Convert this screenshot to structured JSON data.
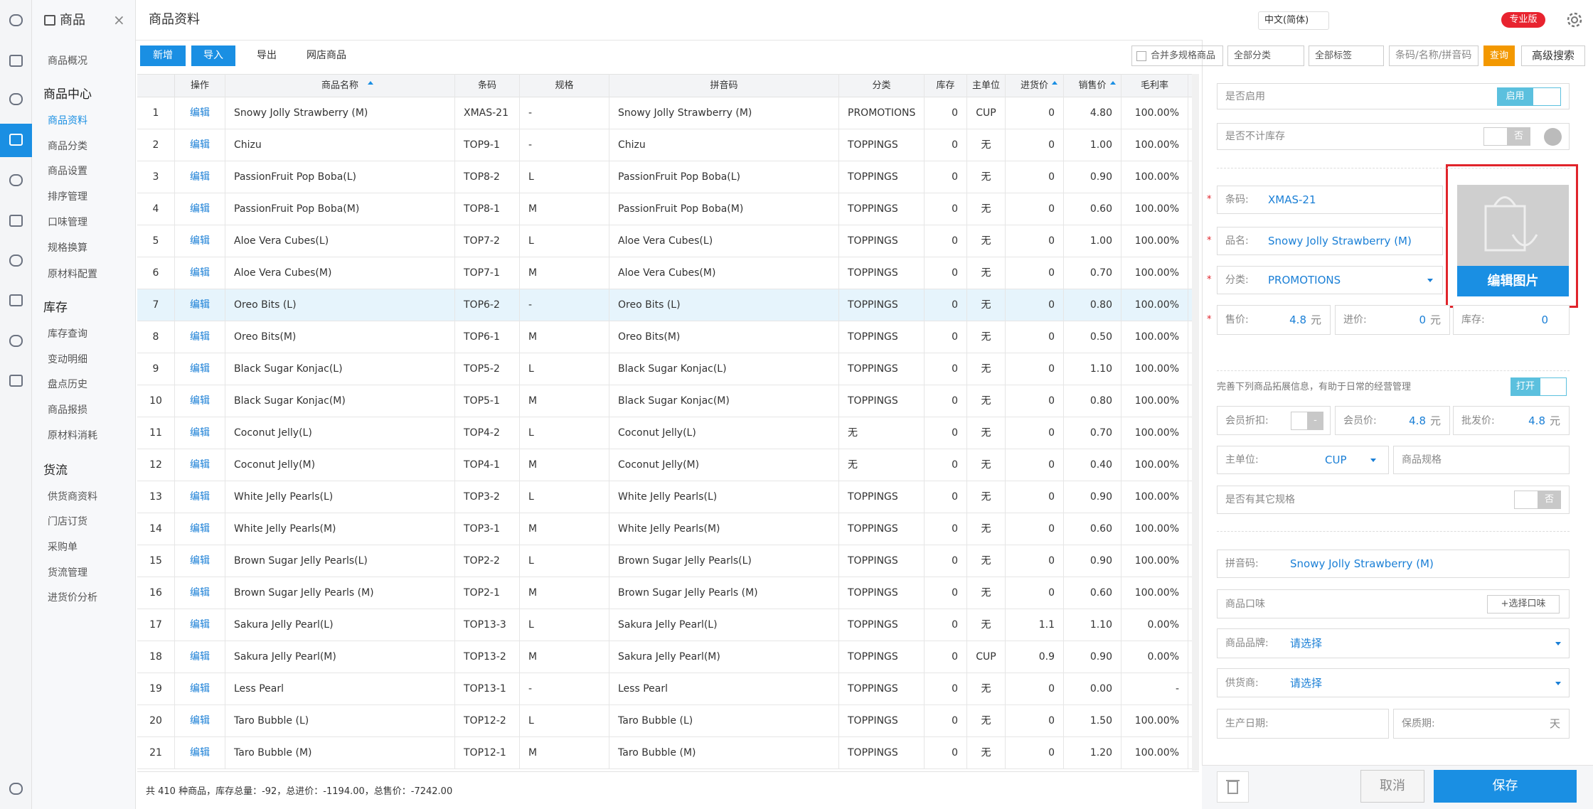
{
  "app": {
    "module": "商品",
    "sidebar": {
      "overview": "商品概况",
      "groups": [
        {
          "title": "商品中心",
          "items": [
            "商品资料",
            "商品分类",
            "商品设置",
            "排序管理",
            "口味管理",
            "规格换算",
            "原材料配置"
          ]
        },
        {
          "title": "库存",
          "items": [
            "库存查询",
            "变动明细",
            "盘点历史",
            "商品报损",
            "原材料消耗"
          ]
        },
        {
          "title": "货流",
          "items": [
            "供货商资料",
            "门店订货",
            "采购单",
            "货流管理",
            "进货价分析"
          ]
        }
      ]
    },
    "header": {
      "title": "商品资料",
      "language": "中文(简体)",
      "badge": "专业版"
    },
    "toolbar": {
      "buttons": [
        "新增",
        "导入",
        "导出",
        "网店商品"
      ],
      "merge": "合并多规格商品",
      "category_filter": "全部分类",
      "tag_filter": "全部标签",
      "search_placeholder": "条码/名称/拼音码",
      "query": "查询",
      "advanced": "高级搜索"
    },
    "table": {
      "columns": [
        "操作",
        "商品名称",
        "条码",
        "规格",
        "拼音码",
        "分类",
        "库存",
        "主单位",
        "进货价",
        "销售价",
        "毛利率"
      ],
      "rows": [
        [
          "1",
          "编辑",
          "Snowy Jolly Strawberry (M)",
          "XMAS-21",
          "-",
          "Snowy Jolly Strawberry (M)",
          "PROMOTIONS",
          "0",
          "CUP",
          "0",
          "4.80",
          "100.00%"
        ],
        [
          "2",
          "编辑",
          "Chizu",
          "TOP9-1",
          "-",
          "Chizu",
          "TOPPINGS",
          "0",
          "无",
          "0",
          "1.00",
          "100.00%"
        ],
        [
          "3",
          "编辑",
          "PassionFruit Pop Boba(L)",
          "TOP8-2",
          "L",
          "PassionFruit Pop Boba(L)",
          "TOPPINGS",
          "0",
          "无",
          "0",
          "0.90",
          "100.00%"
        ],
        [
          "4",
          "编辑",
          "PassionFruit Pop Boba(M)",
          "TOP8-1",
          "M",
          "PassionFruit Pop Boba(M)",
          "TOPPINGS",
          "0",
          "无",
          "0",
          "0.60",
          "100.00%"
        ],
        [
          "5",
          "编辑",
          "Aloe Vera Cubes(L)",
          "TOP7-2",
          "L",
          "Aloe Vera Cubes(L)",
          "TOPPINGS",
          "0",
          "无",
          "0",
          "1.00",
          "100.00%"
        ],
        [
          "6",
          "编辑",
          "Aloe Vera Cubes(M)",
          "TOP7-1",
          "M",
          "Aloe Vera Cubes(M)",
          "TOPPINGS",
          "0",
          "无",
          "0",
          "0.70",
          "100.00%"
        ],
        [
          "7",
          "编辑",
          "Oreo Bits (L)",
          "TOP6-2",
          "-",
          "Oreo Bits (L)",
          "TOPPINGS",
          "0",
          "无",
          "0",
          "0.80",
          "100.00%"
        ],
        [
          "8",
          "编辑",
          "Oreo Bits(M)",
          "TOP6-1",
          "M",
          "Oreo Bits(M)",
          "TOPPINGS",
          "0",
          "无",
          "0",
          "0.50",
          "100.00%"
        ],
        [
          "9",
          "编辑",
          "Black Sugar Konjac(L)",
          "TOP5-2",
          "L",
          "Black Sugar Konjac(L)",
          "TOPPINGS",
          "0",
          "无",
          "0",
          "1.10",
          "100.00%"
        ],
        [
          "10",
          "编辑",
          "Black Sugar Konjac(M)",
          "TOP5-1",
          "M",
          "Black Sugar Konjac(M)",
          "TOPPINGS",
          "0",
          "无",
          "0",
          "0.80",
          "100.00%"
        ],
        [
          "11",
          "编辑",
          "Coconut Jelly(L)",
          "TOP4-2",
          "L",
          "Coconut Jelly(L)",
          "无",
          "0",
          "无",
          "0",
          "0.70",
          "100.00%"
        ],
        [
          "12",
          "编辑",
          "Coconut Jelly(M)",
          "TOP4-1",
          "M",
          "Coconut Jelly(M)",
          "无",
          "0",
          "无",
          "0",
          "0.40",
          "100.00%"
        ],
        [
          "13",
          "编辑",
          "White Jelly Pearls(L)",
          "TOP3-2",
          "L",
          "White Jelly Pearls(L)",
          "TOPPINGS",
          "0",
          "无",
          "0",
          "0.90",
          "100.00%"
        ],
        [
          "14",
          "编辑",
          "White Jelly Pearls(M)",
          "TOP3-1",
          "M",
          "White Jelly Pearls(M)",
          "TOPPINGS",
          "0",
          "无",
          "0",
          "0.60",
          "100.00%"
        ],
        [
          "15",
          "编辑",
          "Brown Sugar Jelly Pearls(L)",
          "TOP2-2",
          "L",
          "Brown Sugar Jelly Pearls(L)",
          "TOPPINGS",
          "0",
          "无",
          "0",
          "0.90",
          "100.00%"
        ],
        [
          "16",
          "编辑",
          "Brown Sugar Jelly Pearls (M)",
          "TOP2-1",
          "M",
          "Brown Sugar Jelly Pearls (M)",
          "TOPPINGS",
          "0",
          "无",
          "0",
          "0.60",
          "100.00%"
        ],
        [
          "17",
          "编辑",
          "Sakura Jelly Pearl(L)",
          "TOP13-3",
          "L",
          "Sakura Jelly Pearl(L)",
          "TOPPINGS",
          "0",
          "无",
          "1.1",
          "1.10",
          "0.00%"
        ],
        [
          "18",
          "编辑",
          "Sakura Jelly Pearl(M)",
          "TOP13-2",
          "M",
          "Sakura Jelly Pearl(M)",
          "TOPPINGS",
          "0",
          "CUP",
          "0.9",
          "0.90",
          "0.00%"
        ],
        [
          "19",
          "编辑",
          "Less Pearl",
          "TOP13-1",
          "-",
          "Less Pearl",
          "TOPPINGS",
          "0",
          "无",
          "0",
          "0.00",
          "-"
        ],
        [
          "20",
          "编辑",
          "Taro Bubble (L)",
          "TOP12-2",
          "L",
          "Taro Bubble (L)",
          "TOPPINGS",
          "0",
          "无",
          "0",
          "1.50",
          "100.00%"
        ],
        [
          "21",
          "编辑",
          "Taro Bubble (M)",
          "TOP12-1",
          "M",
          "Taro Bubble (M)",
          "TOPPINGS",
          "0",
          "无",
          "0",
          "1.20",
          "100.00%"
        ]
      ],
      "footer": "共 410 种商品，库存总量：-92，总进价：-1194.00，总售价：-7242.00"
    },
    "form": {
      "required_mark": "*",
      "enabled": {
        "label": "是否启用",
        "toggle": "启用"
      },
      "ignore_stock": {
        "label": "是否不计库存",
        "toggle": "否"
      },
      "barcode": {
        "label": "条码:",
        "value": "XMAS-21"
      },
      "name": {
        "label": "品名:",
        "value": "Snowy Jolly Strawberry (M)"
      },
      "category": {
        "label": "分类:",
        "value": "PROMOTIONS"
      },
      "price": {
        "label": "售价:",
        "value": "4.8",
        "unit": "元"
      },
      "cost": {
        "label": "进价:",
        "value": "0",
        "unit": "元"
      },
      "stock": {
        "label": "库存:",
        "value": "0"
      },
      "image_button": "编辑图片",
      "extra_note": "完善下列商品拓展信息，有助于日常的经营管理",
      "extra_toggle": "打开",
      "member_discount": {
        "label": "会员折扣:",
        "toggle": "-"
      },
      "member_price": {
        "label": "会员价:",
        "value": "4.8",
        "unit": "元"
      },
      "wholesale_price": {
        "label": "批发价:",
        "value": "4.8",
        "unit": "元"
      },
      "unit": {
        "label": "主单位:",
        "value": "CUP"
      },
      "spec": {
        "label": "商品规格"
      },
      "other_spec": {
        "label": "是否有其它规格",
        "toggle": "否"
      },
      "pinyin": {
        "label": "拼音码:",
        "value": "Snowy Jolly Strawberry (M)"
      },
      "flavor": {
        "label": "商品口味",
        "button": "+选择口味"
      },
      "brand": {
        "label": "商品品牌:",
        "value": "请选择"
      },
      "supplier": {
        "label": "供货商:",
        "value": "请选择"
      },
      "production_date": {
        "label": "生产日期:"
      },
      "shelf_life": {
        "label": "保质期:",
        "unit": "天"
      },
      "cancel": "取消",
      "save": "保存"
    }
  }
}
